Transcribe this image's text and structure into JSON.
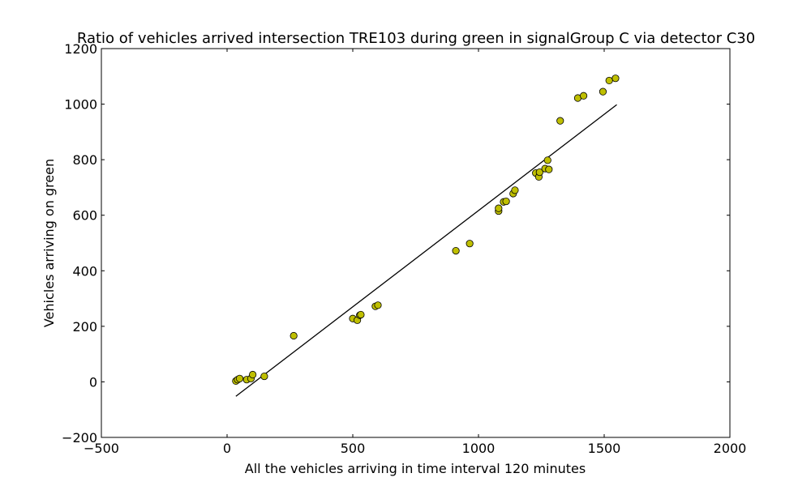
{
  "chart_data": {
    "type": "scatter",
    "title": "Ratio of vehicles arrived intersection TRE103 during green in signalGroup C via detector C30",
    "xlabel": "All the vehicles arriving in time interval 120 minutes",
    "ylabel": "Vehicles arriving on green",
    "xlim": [
      -500,
      2000
    ],
    "ylim": [
      -200,
      1200
    ],
    "xticks": [
      -500,
      0,
      500,
      1000,
      1500,
      2000
    ],
    "yticks": [
      -200,
      0,
      200,
      400,
      600,
      800,
      1000,
      1200
    ],
    "grid": false,
    "legend": "none",
    "marker_color": "#bfbf00",
    "line_color": "#000000",
    "points": [
      {
        "x": 35,
        "y": 3
      },
      {
        "x": 42,
        "y": 8
      },
      {
        "x": 50,
        "y": 12
      },
      {
        "x": 78,
        "y": 8
      },
      {
        "x": 95,
        "y": 12
      },
      {
        "x": 102,
        "y": 26
      },
      {
        "x": 148,
        "y": 20
      },
      {
        "x": 265,
        "y": 166
      },
      {
        "x": 500,
        "y": 228
      },
      {
        "x": 518,
        "y": 222
      },
      {
        "x": 528,
        "y": 240
      },
      {
        "x": 532,
        "y": 242
      },
      {
        "x": 590,
        "y": 272
      },
      {
        "x": 600,
        "y": 276
      },
      {
        "x": 910,
        "y": 472
      },
      {
        "x": 965,
        "y": 498
      },
      {
        "x": 1080,
        "y": 615
      },
      {
        "x": 1080,
        "y": 625
      },
      {
        "x": 1100,
        "y": 648
      },
      {
        "x": 1110,
        "y": 650
      },
      {
        "x": 1138,
        "y": 678
      },
      {
        "x": 1145,
        "y": 690
      },
      {
        "x": 1228,
        "y": 752
      },
      {
        "x": 1240,
        "y": 738
      },
      {
        "x": 1243,
        "y": 755
      },
      {
        "x": 1265,
        "y": 768
      },
      {
        "x": 1280,
        "y": 765
      },
      {
        "x": 1275,
        "y": 798
      },
      {
        "x": 1325,
        "y": 940
      },
      {
        "x": 1395,
        "y": 1022
      },
      {
        "x": 1418,
        "y": 1030
      },
      {
        "x": 1495,
        "y": 1045
      },
      {
        "x": 1520,
        "y": 1085
      },
      {
        "x": 1545,
        "y": 1093
      }
    ],
    "fit_line": {
      "x": [
        35,
        1550
      ],
      "y": [
        -52,
        998
      ]
    }
  }
}
